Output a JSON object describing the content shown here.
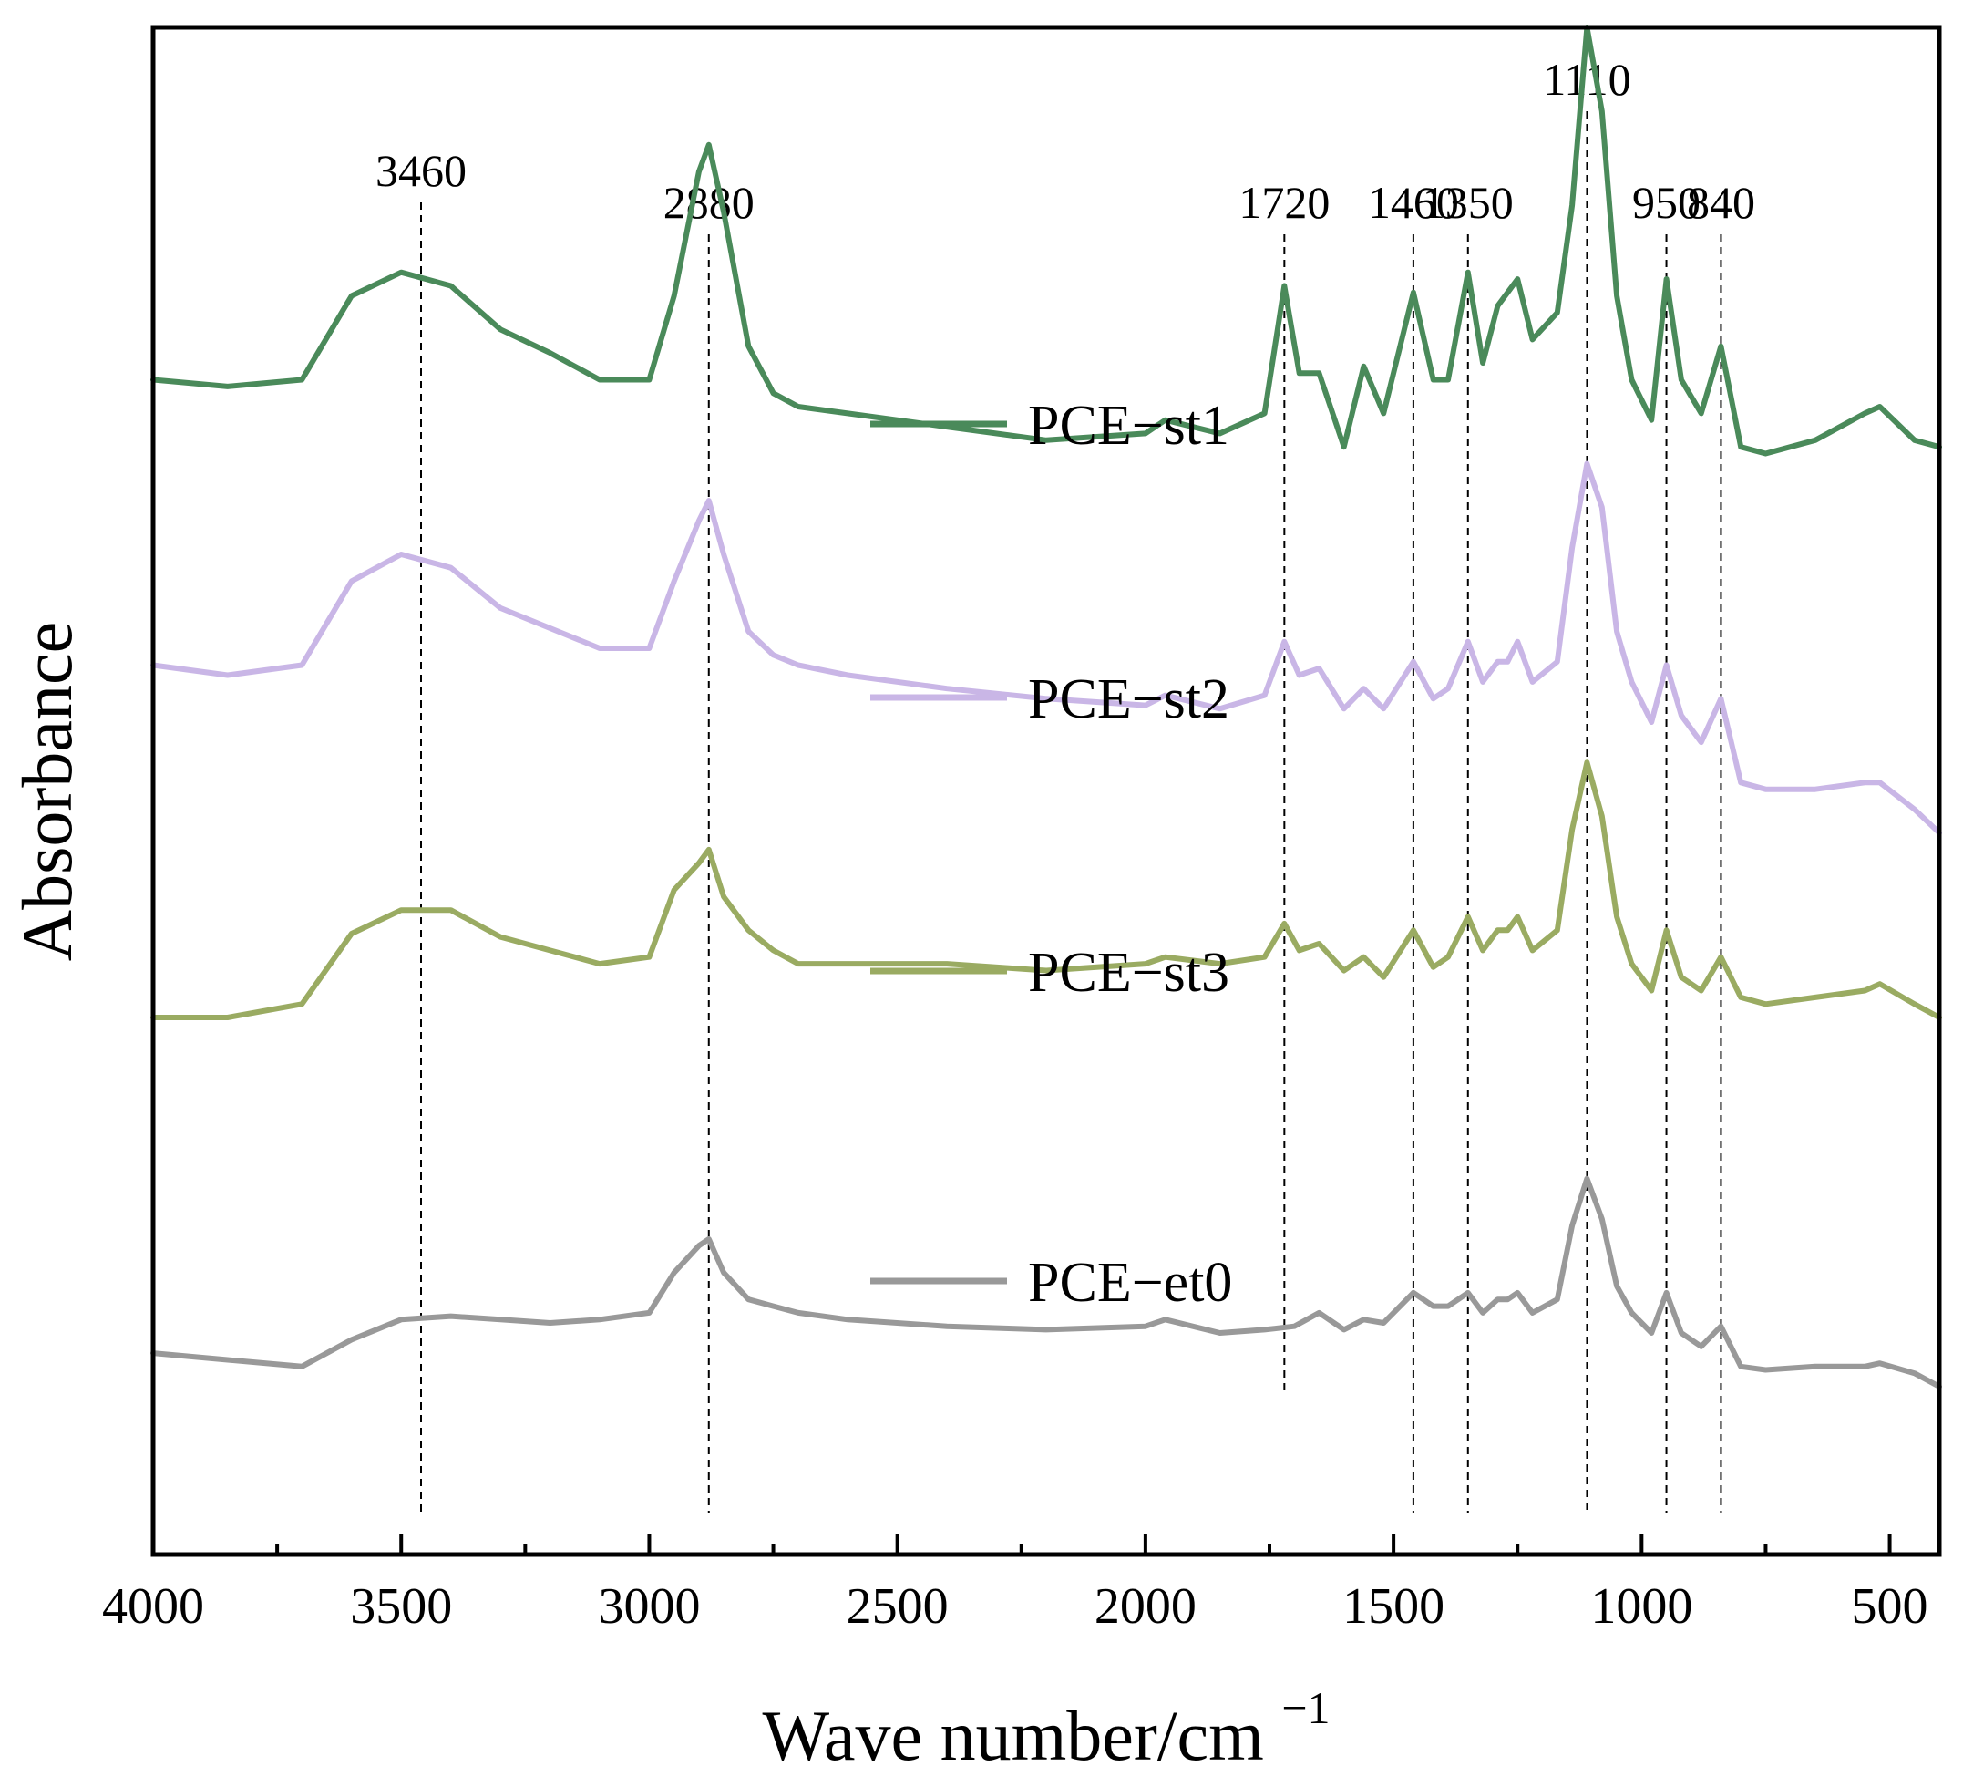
{
  "chart_data": {
    "type": "line",
    "title": "",
    "xlabel": "Wave number/cm",
    "xlabel_superscript": "−1",
    "ylabel": "Absorbance",
    "xlim": [
      4000,
      400
    ],
    "x_ticks": [
      4000,
      3500,
      3000,
      2500,
      2000,
      1500,
      1000,
      500
    ],
    "x_tick_labels": [
      "4000",
      "3500",
      "3000",
      "2500",
      "2000",
      "1500",
      "1000",
      "500"
    ],
    "y_ticks_shown": false,
    "legend_placement": "center",
    "peak_markers": [
      {
        "label": "3460",
        "x": 3460
      },
      {
        "label": "2880",
        "x": 2880
      },
      {
        "label": "1720",
        "x": 1720
      },
      {
        "label": "1460",
        "x": 1460
      },
      {
        "label": "1350",
        "x": 1350
      },
      {
        "label": "1110",
        "x": 1110
      },
      {
        "label": "950",
        "x": 950
      },
      {
        "label": "840",
        "x": 840
      }
    ],
    "series": [
      {
        "name": "PCE−st1",
        "color": "#4a8a5a",
        "offset": 3.0,
        "points": [
          [
            4000,
            0.3
          ],
          [
            3850,
            0.28
          ],
          [
            3700,
            0.3
          ],
          [
            3600,
            0.55
          ],
          [
            3500,
            0.62
          ],
          [
            3400,
            0.58
          ],
          [
            3300,
            0.45
          ],
          [
            3200,
            0.38
          ],
          [
            3100,
            0.3
          ],
          [
            3000,
            0.3
          ],
          [
            2950,
            0.55
          ],
          [
            2900,
            0.92
          ],
          [
            2880,
            1.0
          ],
          [
            2850,
            0.8
          ],
          [
            2800,
            0.4
          ],
          [
            2750,
            0.26
          ],
          [
            2700,
            0.22
          ],
          [
            2600,
            0.2
          ],
          [
            2400,
            0.16
          ],
          [
            2200,
            0.12
          ],
          [
            2000,
            0.14
          ],
          [
            1960,
            0.18
          ],
          [
            1850,
            0.14
          ],
          [
            1760,
            0.2
          ],
          [
            1720,
            0.58
          ],
          [
            1690,
            0.32
          ],
          [
            1650,
            0.32
          ],
          [
            1600,
            0.1
          ],
          [
            1560,
            0.34
          ],
          [
            1520,
            0.2
          ],
          [
            1460,
            0.56
          ],
          [
            1420,
            0.3
          ],
          [
            1390,
            0.3
          ],
          [
            1350,
            0.62
          ],
          [
            1320,
            0.35
          ],
          [
            1290,
            0.52
          ],
          [
            1270,
            0.56
          ],
          [
            1250,
            0.6
          ],
          [
            1220,
            0.42
          ],
          [
            1170,
            0.5
          ],
          [
            1140,
            0.82
          ],
          [
            1110,
            1.35
          ],
          [
            1080,
            1.1
          ],
          [
            1050,
            0.55
          ],
          [
            1020,
            0.3
          ],
          [
            980,
            0.18
          ],
          [
            950,
            0.6
          ],
          [
            920,
            0.3
          ],
          [
            880,
            0.2
          ],
          [
            840,
            0.4
          ],
          [
            800,
            0.1
          ],
          [
            750,
            0.08
          ],
          [
            650,
            0.12
          ],
          [
            550,
            0.2
          ],
          [
            520,
            0.22
          ],
          [
            450,
            0.12
          ],
          [
            400,
            0.1
          ]
        ]
      },
      {
        "name": "PCE−st2",
        "color": "#c9b6e6",
        "offset": 2.0,
        "points": [
          [
            4000,
            0.45
          ],
          [
            3850,
            0.42
          ],
          [
            3700,
            0.45
          ],
          [
            3600,
            0.7
          ],
          [
            3500,
            0.78
          ],
          [
            3400,
            0.74
          ],
          [
            3300,
            0.62
          ],
          [
            3200,
            0.56
          ],
          [
            3100,
            0.5
          ],
          [
            3000,
            0.5
          ],
          [
            2950,
            0.7
          ],
          [
            2900,
            0.88
          ],
          [
            2880,
            0.94
          ],
          [
            2850,
            0.78
          ],
          [
            2800,
            0.55
          ],
          [
            2750,
            0.48
          ],
          [
            2700,
            0.45
          ],
          [
            2600,
            0.42
          ],
          [
            2400,
            0.38
          ],
          [
            2200,
            0.35
          ],
          [
            2000,
            0.33
          ],
          [
            1960,
            0.36
          ],
          [
            1850,
            0.32
          ],
          [
            1760,
            0.36
          ],
          [
            1720,
            0.52
          ],
          [
            1690,
            0.42
          ],
          [
            1650,
            0.44
          ],
          [
            1600,
            0.32
          ],
          [
            1560,
            0.38
          ],
          [
            1520,
            0.32
          ],
          [
            1460,
            0.46
          ],
          [
            1420,
            0.35
          ],
          [
            1390,
            0.38
          ],
          [
            1350,
            0.52
          ],
          [
            1320,
            0.4
          ],
          [
            1290,
            0.46
          ],
          [
            1270,
            0.46
          ],
          [
            1250,
            0.52
          ],
          [
            1220,
            0.4
          ],
          [
            1170,
            0.46
          ],
          [
            1140,
            0.8
          ],
          [
            1110,
            1.05
          ],
          [
            1080,
            0.92
          ],
          [
            1050,
            0.55
          ],
          [
            1020,
            0.4
          ],
          [
            980,
            0.28
          ],
          [
            950,
            0.45
          ],
          [
            920,
            0.3
          ],
          [
            880,
            0.22
          ],
          [
            840,
            0.35
          ],
          [
            800,
            0.1
          ],
          [
            750,
            0.08
          ],
          [
            650,
            0.08
          ],
          [
            550,
            0.1
          ],
          [
            520,
            0.1
          ],
          [
            450,
            0.02
          ],
          [
            400,
            -0.05
          ]
        ]
      },
      {
        "name": "PCE−st3",
        "color": "#9aab62",
        "offset": 1.0,
        "points": [
          [
            4000,
            0.4
          ],
          [
            3850,
            0.4
          ],
          [
            3700,
            0.44
          ],
          [
            3600,
            0.65
          ],
          [
            3500,
            0.72
          ],
          [
            3400,
            0.72
          ],
          [
            3300,
            0.64
          ],
          [
            3200,
            0.6
          ],
          [
            3100,
            0.56
          ],
          [
            3000,
            0.58
          ],
          [
            2950,
            0.78
          ],
          [
            2900,
            0.86
          ],
          [
            2880,
            0.9
          ],
          [
            2850,
            0.76
          ],
          [
            2800,
            0.66
          ],
          [
            2750,
            0.6
          ],
          [
            2700,
            0.56
          ],
          [
            2600,
            0.56
          ],
          [
            2400,
            0.56
          ],
          [
            2200,
            0.54
          ],
          [
            2000,
            0.56
          ],
          [
            1960,
            0.58
          ],
          [
            1850,
            0.56
          ],
          [
            1760,
            0.58
          ],
          [
            1720,
            0.68
          ],
          [
            1690,
            0.6
          ],
          [
            1650,
            0.62
          ],
          [
            1600,
            0.54
          ],
          [
            1560,
            0.58
          ],
          [
            1520,
            0.52
          ],
          [
            1460,
            0.66
          ],
          [
            1420,
            0.55
          ],
          [
            1390,
            0.58
          ],
          [
            1350,
            0.7
          ],
          [
            1320,
            0.6
          ],
          [
            1290,
            0.66
          ],
          [
            1270,
            0.66
          ],
          [
            1250,
            0.7
          ],
          [
            1220,
            0.6
          ],
          [
            1170,
            0.66
          ],
          [
            1140,
            0.96
          ],
          [
            1110,
            1.16
          ],
          [
            1080,
            1.0
          ],
          [
            1050,
            0.7
          ],
          [
            1020,
            0.56
          ],
          [
            980,
            0.48
          ],
          [
            950,
            0.66
          ],
          [
            920,
            0.52
          ],
          [
            880,
            0.48
          ],
          [
            840,
            0.58
          ],
          [
            800,
            0.46
          ],
          [
            750,
            0.44
          ],
          [
            650,
            0.46
          ],
          [
            550,
            0.48
          ],
          [
            520,
            0.5
          ],
          [
            450,
            0.44
          ],
          [
            400,
            0.4
          ]
        ]
      },
      {
        "name": "PCE−et0",
        "color": "#999999",
        "offset": 0.0,
        "points": [
          [
            4000,
            0.4
          ],
          [
            3850,
            0.38
          ],
          [
            3700,
            0.36
          ],
          [
            3600,
            0.44
          ],
          [
            3500,
            0.5
          ],
          [
            3400,
            0.51
          ],
          [
            3300,
            0.5
          ],
          [
            3200,
            0.49
          ],
          [
            3100,
            0.5
          ],
          [
            3000,
            0.52
          ],
          [
            2950,
            0.64
          ],
          [
            2900,
            0.72
          ],
          [
            2880,
            0.74
          ],
          [
            2850,
            0.64
          ],
          [
            2800,
            0.56
          ],
          [
            2750,
            0.54
          ],
          [
            2700,
            0.52
          ],
          [
            2600,
            0.5
          ],
          [
            2400,
            0.48
          ],
          [
            2200,
            0.47
          ],
          [
            2000,
            0.48
          ],
          [
            1960,
            0.5
          ],
          [
            1850,
            0.46
          ],
          [
            1760,
            0.47
          ],
          [
            1700,
            0.48
          ],
          [
            1650,
            0.52
          ],
          [
            1600,
            0.47
          ],
          [
            1560,
            0.5
          ],
          [
            1520,
            0.49
          ],
          [
            1460,
            0.58
          ],
          [
            1420,
            0.54
          ],
          [
            1390,
            0.54
          ],
          [
            1350,
            0.58
          ],
          [
            1320,
            0.52
          ],
          [
            1290,
            0.56
          ],
          [
            1270,
            0.56
          ],
          [
            1250,
            0.58
          ],
          [
            1220,
            0.52
          ],
          [
            1170,
            0.56
          ],
          [
            1140,
            0.78
          ],
          [
            1110,
            0.92
          ],
          [
            1080,
            0.8
          ],
          [
            1050,
            0.6
          ],
          [
            1020,
            0.52
          ],
          [
            980,
            0.46
          ],
          [
            950,
            0.58
          ],
          [
            920,
            0.46
          ],
          [
            880,
            0.42
          ],
          [
            840,
            0.48
          ],
          [
            800,
            0.36
          ],
          [
            750,
            0.35
          ],
          [
            650,
            0.36
          ],
          [
            550,
            0.36
          ],
          [
            520,
            0.37
          ],
          [
            450,
            0.34
          ],
          [
            400,
            0.3
          ]
        ]
      }
    ]
  }
}
